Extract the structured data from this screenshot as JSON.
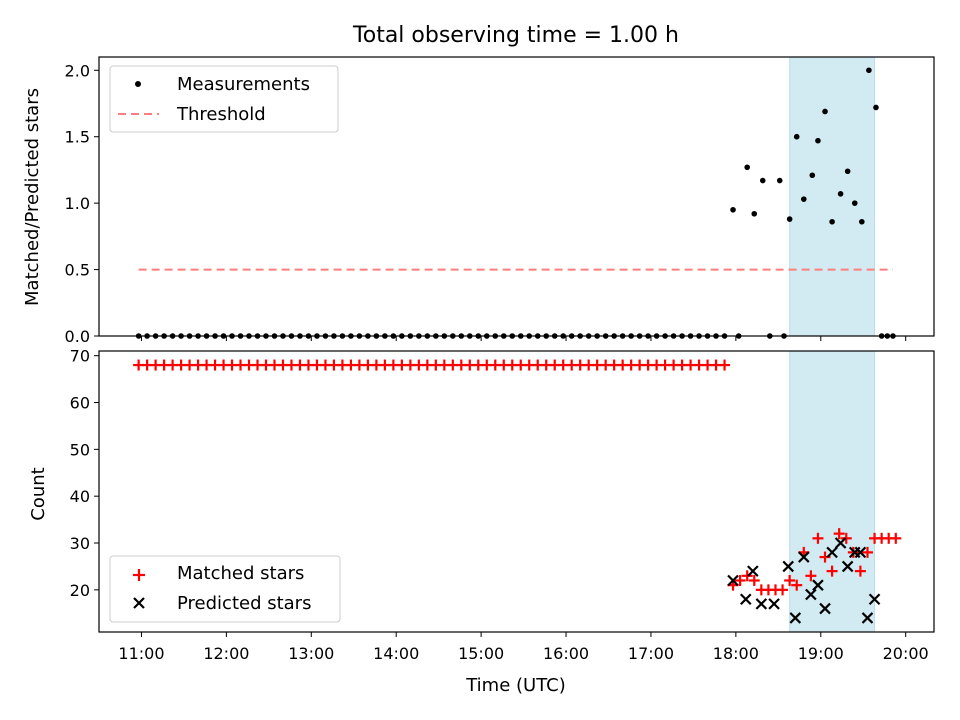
{
  "figure": {
    "title": "Total observing time = 1.00 h"
  },
  "colors": {
    "measurements": "#000000",
    "threshold": "#ff7f7f",
    "matched": "#ff0000",
    "predicted": "#000000",
    "span_fill": "#add8e6"
  },
  "chart_data": [
    {
      "type": "scatter",
      "ylabel": "Matched/Predicted stars",
      "xlabel": "",
      "xlim": [
        "10:30",
        "20:20"
      ],
      "ylim": [
        0,
        2.1
      ],
      "y_ticks": [
        "0.0",
        "0.5",
        "1.0",
        "1.5",
        "2.0"
      ],
      "legend_position": "upper-left",
      "highlight_span": [
        "18:38",
        "19:38"
      ],
      "threshold": {
        "name": "Threshold",
        "y": 0.5,
        "x_range": [
          "10:58",
          "19:51"
        ]
      },
      "series": [
        {
          "name": "Measurements",
          "marker": "dot",
          "points": [
            [
              "10:58",
              0
            ],
            [
              "11:04",
              0
            ],
            [
              "11:10",
              0
            ],
            [
              "11:16",
              0
            ],
            [
              "11:22",
              0
            ],
            [
              "11:28",
              0
            ],
            [
              "11:34",
              0
            ],
            [
              "11:40",
              0
            ],
            [
              "11:46",
              0
            ],
            [
              "11:52",
              0
            ],
            [
              "11:58",
              0
            ],
            [
              "12:04",
              0
            ],
            [
              "12:10",
              0
            ],
            [
              "12:16",
              0
            ],
            [
              "12:22",
              0
            ],
            [
              "12:28",
              0
            ],
            [
              "12:34",
              0
            ],
            [
              "12:40",
              0
            ],
            [
              "12:46",
              0
            ],
            [
              "12:52",
              0
            ],
            [
              "12:58",
              0
            ],
            [
              "13:04",
              0
            ],
            [
              "13:10",
              0
            ],
            [
              "13:16",
              0
            ],
            [
              "13:22",
              0
            ],
            [
              "13:28",
              0
            ],
            [
              "13:34",
              0
            ],
            [
              "13:40",
              0
            ],
            [
              "13:46",
              0
            ],
            [
              "13:52",
              0
            ],
            [
              "13:58",
              0
            ],
            [
              "14:04",
              0
            ],
            [
              "14:10",
              0
            ],
            [
              "14:16",
              0
            ],
            [
              "14:22",
              0
            ],
            [
              "14:28",
              0
            ],
            [
              "14:34",
              0
            ],
            [
              "14:40",
              0
            ],
            [
              "14:46",
              0
            ],
            [
              "14:52",
              0
            ],
            [
              "14:58",
              0
            ],
            [
              "15:04",
              0
            ],
            [
              "15:10",
              0
            ],
            [
              "15:16",
              0
            ],
            [
              "15:22",
              0
            ],
            [
              "15:28",
              0
            ],
            [
              "15:34",
              0
            ],
            [
              "15:40",
              0
            ],
            [
              "15:46",
              0
            ],
            [
              "15:52",
              0
            ],
            [
              "15:58",
              0
            ],
            [
              "16:04",
              0
            ],
            [
              "16:10",
              0
            ],
            [
              "16:16",
              0
            ],
            [
              "16:22",
              0
            ],
            [
              "16:28",
              0
            ],
            [
              "16:34",
              0
            ],
            [
              "16:40",
              0
            ],
            [
              "16:46",
              0
            ],
            [
              "16:52",
              0
            ],
            [
              "16:58",
              0
            ],
            [
              "17:04",
              0
            ],
            [
              "17:10",
              0
            ],
            [
              "17:16",
              0
            ],
            [
              "17:22",
              0
            ],
            [
              "17:28",
              0
            ],
            [
              "17:34",
              0
            ],
            [
              "17:40",
              0
            ],
            [
              "17:46",
              0
            ],
            [
              "17:52",
              0
            ],
            [
              "17:58",
              0.95
            ],
            [
              "18:02",
              0
            ],
            [
              "18:08",
              1.27
            ],
            [
              "18:13",
              0.92
            ],
            [
              "18:19",
              1.17
            ],
            [
              "18:24",
              0
            ],
            [
              "18:31",
              1.17
            ],
            [
              "18:34",
              0
            ],
            [
              "18:38",
              0.88
            ],
            [
              "18:43",
              1.5
            ],
            [
              "18:48",
              1.03
            ],
            [
              "18:54",
              1.21
            ],
            [
              "18:58",
              1.47
            ],
            [
              "19:03",
              1.69
            ],
            [
              "19:08",
              0.86
            ],
            [
              "19:14",
              1.07
            ],
            [
              "19:19",
              1.24
            ],
            [
              "19:24",
              1.0
            ],
            [
              "19:29",
              0.86
            ],
            [
              "19:34",
              2.0
            ],
            [
              "19:39",
              1.72
            ],
            [
              "19:43",
              0
            ],
            [
              "19:47",
              0
            ],
            [
              "19:51",
              0
            ]
          ]
        }
      ],
      "legend": [
        "Measurements",
        "Threshold"
      ]
    },
    {
      "type": "scatter",
      "ylabel": "Count",
      "xlabel": "Time (UTC)",
      "xlim": [
        "10:30",
        "20:20"
      ],
      "ylim": [
        11,
        71
      ],
      "y_ticks": [
        "20",
        "30",
        "40",
        "50",
        "60",
        "70"
      ],
      "x_ticks": [
        "11:00",
        "12:00",
        "13:00",
        "14:00",
        "15:00",
        "16:00",
        "17:00",
        "18:00",
        "19:00",
        "20:00"
      ],
      "legend_position": "lower-left",
      "highlight_span": [
        "18:38",
        "19:38"
      ],
      "series": [
        {
          "name": "Matched stars",
          "marker": "plus",
          "points": [
            [
              "10:58",
              68
            ],
            [
              "11:04",
              68
            ],
            [
              "11:10",
              68
            ],
            [
              "11:16",
              68
            ],
            [
              "11:22",
              68
            ],
            [
              "11:28",
              68
            ],
            [
              "11:34",
              68
            ],
            [
              "11:40",
              68
            ],
            [
              "11:46",
              68
            ],
            [
              "11:52",
              68
            ],
            [
              "11:58",
              68
            ],
            [
              "12:04",
              68
            ],
            [
              "12:10",
              68
            ],
            [
              "12:16",
              68
            ],
            [
              "12:22",
              68
            ],
            [
              "12:28",
              68
            ],
            [
              "12:34",
              68
            ],
            [
              "12:40",
              68
            ],
            [
              "12:46",
              68
            ],
            [
              "12:52",
              68
            ],
            [
              "12:58",
              68
            ],
            [
              "13:04",
              68
            ],
            [
              "13:10",
              68
            ],
            [
              "13:16",
              68
            ],
            [
              "13:22",
              68
            ],
            [
              "13:28",
              68
            ],
            [
              "13:34",
              68
            ],
            [
              "13:40",
              68
            ],
            [
              "13:46",
              68
            ],
            [
              "13:52",
              68
            ],
            [
              "13:58",
              68
            ],
            [
              "14:04",
              68
            ],
            [
              "14:10",
              68
            ],
            [
              "14:16",
              68
            ],
            [
              "14:22",
              68
            ],
            [
              "14:28",
              68
            ],
            [
              "14:34",
              68
            ],
            [
              "14:40",
              68
            ],
            [
              "14:46",
              68
            ],
            [
              "14:52",
              68
            ],
            [
              "14:58",
              68
            ],
            [
              "15:04",
              68
            ],
            [
              "15:10",
              68
            ],
            [
              "15:16",
              68
            ],
            [
              "15:22",
              68
            ],
            [
              "15:28",
              68
            ],
            [
              "15:34",
              68
            ],
            [
              "15:40",
              68
            ],
            [
              "15:46",
              68
            ],
            [
              "15:52",
              68
            ],
            [
              "15:58",
              68
            ],
            [
              "16:04",
              68
            ],
            [
              "16:10",
              68
            ],
            [
              "16:16",
              68
            ],
            [
              "16:22",
              68
            ],
            [
              "16:28",
              68
            ],
            [
              "16:34",
              68
            ],
            [
              "16:40",
              68
            ],
            [
              "16:46",
              68
            ],
            [
              "16:52",
              68
            ],
            [
              "16:58",
              68
            ],
            [
              "17:04",
              68
            ],
            [
              "17:10",
              68
            ],
            [
              "17:16",
              68
            ],
            [
              "17:22",
              68
            ],
            [
              "17:28",
              68
            ],
            [
              "17:34",
              68
            ],
            [
              "17:40",
              68
            ],
            [
              "17:46",
              68
            ],
            [
              "17:52",
              68
            ],
            [
              "17:58",
              21
            ],
            [
              "18:03",
              22
            ],
            [
              "18:08",
              23
            ],
            [
              "18:13",
              22
            ],
            [
              "18:18",
              20
            ],
            [
              "18:23",
              20
            ],
            [
              "18:28",
              20
            ],
            [
              "18:33",
              20
            ],
            [
              "18:38",
              22
            ],
            [
              "18:43",
              21
            ],
            [
              "18:48",
              28
            ],
            [
              "18:53",
              23
            ],
            [
              "18:58",
              31
            ],
            [
              "19:03",
              27
            ],
            [
              "19:08",
              24
            ],
            [
              "19:13",
              32
            ],
            [
              "19:18",
              31
            ],
            [
              "19:23",
              28
            ],
            [
              "19:28",
              24
            ],
            [
              "19:33",
              28
            ],
            [
              "19:38",
              31
            ],
            [
              "19:43",
              31
            ],
            [
              "19:48",
              31
            ],
            [
              "19:53",
              31
            ]
          ]
        },
        {
          "name": "Predicted stars",
          "marker": "x",
          "points": [
            [
              "17:58",
              22
            ],
            [
              "18:07",
              18
            ],
            [
              "18:12",
              24
            ],
            [
              "18:18",
              17
            ],
            [
              "18:27",
              17
            ],
            [
              "18:37",
              25
            ],
            [
              "18:42",
              14
            ],
            [
              "18:48",
              27
            ],
            [
              "18:53",
              19
            ],
            [
              "18:58",
              21
            ],
            [
              "19:03",
              16
            ],
            [
              "19:08",
              28
            ],
            [
              "19:14",
              30
            ],
            [
              "19:19",
              25
            ],
            [
              "19:24",
              28
            ],
            [
              "19:28",
              28
            ],
            [
              "19:33",
              14
            ],
            [
              "19:38",
              18
            ]
          ]
        }
      ],
      "legend": [
        "Matched stars",
        "Predicted stars"
      ]
    }
  ]
}
